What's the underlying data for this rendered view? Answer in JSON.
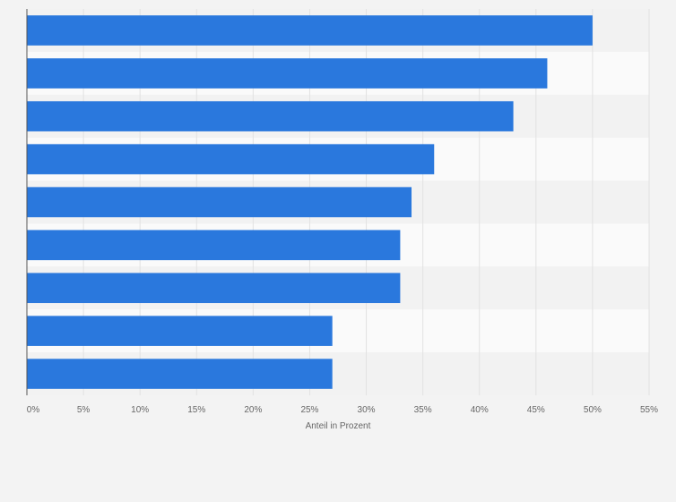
{
  "chart_data": {
    "type": "bar",
    "orientation": "horizontal",
    "categories": [
      "",
      "",
      "",
      "",
      "",
      "",
      "",
      "",
      ""
    ],
    "values": [
      50,
      46,
      43,
      36,
      34,
      33,
      33,
      27,
      27
    ],
    "value_unit": "%",
    "xlabel": "Anteil in Prozent",
    "xlim": [
      0,
      55
    ],
    "x_ticks": [
      0,
      5,
      10,
      15,
      20,
      25,
      30,
      35,
      40,
      45,
      50,
      55
    ],
    "x_tick_labels": [
      "0%",
      "5%",
      "10%",
      "15%",
      "20%",
      "25%",
      "30%",
      "35%",
      "40%",
      "45%",
      "50%",
      "55%"
    ],
    "grid": true,
    "bar_color": "#2a78dd",
    "row_band_colors": [
      "#f2f2f2",
      "#fafafa"
    ],
    "gridline_color": "#e2e2e2",
    "axis_color": "#555555"
  }
}
